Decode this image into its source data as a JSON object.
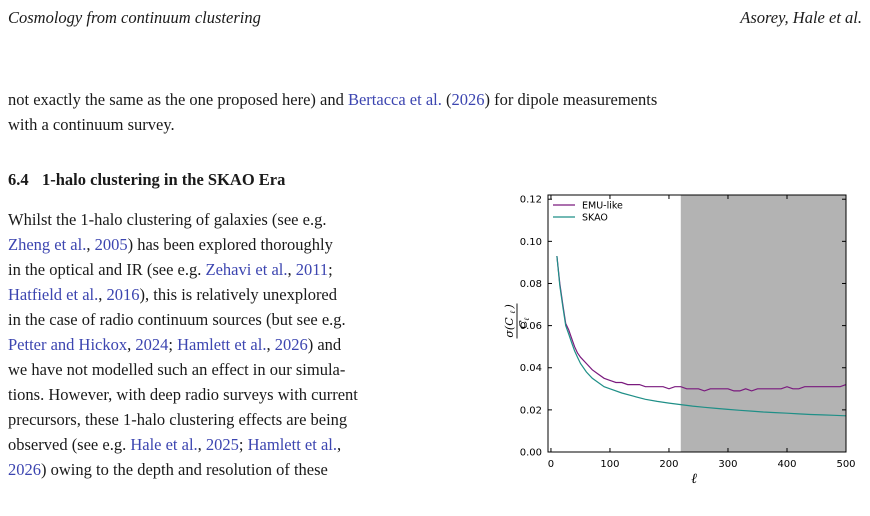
{
  "header": {
    "left": "Cosmology from continuum clustering",
    "right": "Asorey, Hale et al."
  },
  "intro_paragraph": {
    "line1": [
      {
        "t": "not exactly the same as the one proposed here) and ",
        "c": false
      },
      {
        "t": "Bertacca et al.",
        "c": true
      },
      {
        "t": " (",
        "c": false
      },
      {
        "t": "2026",
        "c": true
      },
      {
        "t": ") for dipole measurements",
        "c": false
      }
    ],
    "line2": [
      {
        "t": "with a continuum survey.",
        "c": false
      }
    ]
  },
  "section": {
    "number": "6.4",
    "title": "1-halo clustering in the SKAO Era"
  },
  "body_lines": [
    [
      {
        "t": "Whilst the 1-halo clustering of galaxies (see e.g.",
        "c": false
      }
    ],
    [
      {
        "t": "Zheng et al.",
        "c": true
      },
      {
        "t": ", ",
        "c": false
      },
      {
        "t": "2005",
        "c": true
      },
      {
        "t": ") has been explored thoroughly",
        "c": false
      }
    ],
    [
      {
        "t": "in the optical and IR (see e.g. ",
        "c": false
      },
      {
        "t": "Zehavi et al.",
        "c": true
      },
      {
        "t": ", ",
        "c": false
      },
      {
        "t": "2011",
        "c": true
      },
      {
        "t": ";",
        "c": false
      }
    ],
    [
      {
        "t": "Hatfield et al.",
        "c": true
      },
      {
        "t": ", ",
        "c": false
      },
      {
        "t": "2016",
        "c": true
      },
      {
        "t": "), this is relatively unexplored",
        "c": false
      }
    ],
    [
      {
        "t": "in the case of radio continuum sources (but see e.g.",
        "c": false
      }
    ],
    [
      {
        "t": "Petter and Hickox",
        "c": true
      },
      {
        "t": ", ",
        "c": false
      },
      {
        "t": "2024",
        "c": true
      },
      {
        "t": "; ",
        "c": false
      },
      {
        "t": "Hamlett et al.",
        "c": true
      },
      {
        "t": ", ",
        "c": false
      },
      {
        "t": "2026",
        "c": true
      },
      {
        "t": ") and",
        "c": false
      }
    ],
    [
      {
        "t": "we have not modelled such an effect in our simula-",
        "c": false
      }
    ],
    [
      {
        "t": "tions. However, with deep radio surveys with current",
        "c": false
      }
    ],
    [
      {
        "t": "precursors, these 1-halo clustering effects are being",
        "c": false
      }
    ],
    [
      {
        "t": "observed (see e.g. ",
        "c": false
      },
      {
        "t": "Hale et al.",
        "c": true
      },
      {
        "t": ", ",
        "c": false
      },
      {
        "t": "2025",
        "c": true
      },
      {
        "t": "; ",
        "c": false
      },
      {
        "t": "Hamlett et al.",
        "c": true
      },
      {
        "t": ",",
        "c": false
      }
    ],
    [
      {
        "t": "2026",
        "c": true
      },
      {
        "t": ") owing to the depth and resolution of these",
        "c": false
      }
    ]
  ],
  "chart_data": {
    "type": "line",
    "xlabel": "ℓ",
    "ylabel_num": "σ(C",
    "ylabel_num_sub": "ℓ",
    "ylabel_den": "C",
    "ylabel_den_sub": "ℓ",
    "xlim": [
      -5,
      500
    ],
    "ylim": [
      0.0,
      0.122
    ],
    "xticks": [
      0,
      100,
      200,
      300,
      400,
      500
    ],
    "yticks": [
      0.0,
      0.02,
      0.04,
      0.06,
      0.08,
      0.1,
      0.12
    ],
    "xtick_labels": [
      "0",
      "100",
      "200",
      "300",
      "400",
      "500"
    ],
    "ytick_labels": [
      "0.00",
      "0.02",
      "0.04",
      "0.06",
      "0.08",
      "0.10",
      "0.12"
    ],
    "shaded_region": {
      "x_from": 220,
      "x_to": 500,
      "color": "#b3b3b3"
    },
    "legend": "top-left",
    "grid": false,
    "series": [
      {
        "name": "EMU-like",
        "color": "#7a1a7e",
        "x": [
          10,
          15,
          20,
          25,
          30,
          35,
          40,
          45,
          50,
          60,
          70,
          80,
          90,
          100,
          110,
          120,
          130,
          140,
          150,
          160,
          170,
          180,
          190,
          200,
          210,
          220,
          230,
          240,
          250,
          260,
          270,
          280,
          290,
          300,
          310,
          320,
          330,
          340,
          350,
          360,
          370,
          380,
          390,
          400,
          410,
          420,
          430,
          440,
          450,
          460,
          470,
          480,
          490,
          500
        ],
        "y": [
          0.093,
          0.08,
          0.07,
          0.061,
          0.058,
          0.054,
          0.05,
          0.047,
          0.045,
          0.042,
          0.039,
          0.037,
          0.035,
          0.034,
          0.033,
          0.033,
          0.032,
          0.032,
          0.032,
          0.031,
          0.031,
          0.031,
          0.031,
          0.03,
          0.031,
          0.031,
          0.03,
          0.03,
          0.03,
          0.029,
          0.03,
          0.03,
          0.03,
          0.03,
          0.029,
          0.029,
          0.03,
          0.029,
          0.03,
          0.03,
          0.03,
          0.03,
          0.03,
          0.031,
          0.03,
          0.03,
          0.031,
          0.031,
          0.031,
          0.031,
          0.031,
          0.031,
          0.031,
          0.032
        ]
      },
      {
        "name": "SKAO",
        "color": "#1f8f87",
        "x": [
          10,
          15,
          20,
          25,
          30,
          35,
          40,
          45,
          50,
          60,
          70,
          80,
          90,
          100,
          120,
          140,
          160,
          180,
          200,
          220,
          240,
          260,
          280,
          300,
          320,
          340,
          360,
          380,
          400,
          420,
          440,
          460,
          480,
          500
        ],
        "y": [
          0.093,
          0.079,
          0.069,
          0.06,
          0.056,
          0.052,
          0.048,
          0.045,
          0.042,
          0.038,
          0.035,
          0.033,
          0.031,
          0.03,
          0.028,
          0.0265,
          0.025,
          0.024,
          0.0232,
          0.0225,
          0.0218,
          0.0212,
          0.0207,
          0.0202,
          0.0198,
          0.0194,
          0.019,
          0.0187,
          0.0184,
          0.0181,
          0.0178,
          0.0176,
          0.0174,
          0.0172
        ]
      }
    ]
  }
}
